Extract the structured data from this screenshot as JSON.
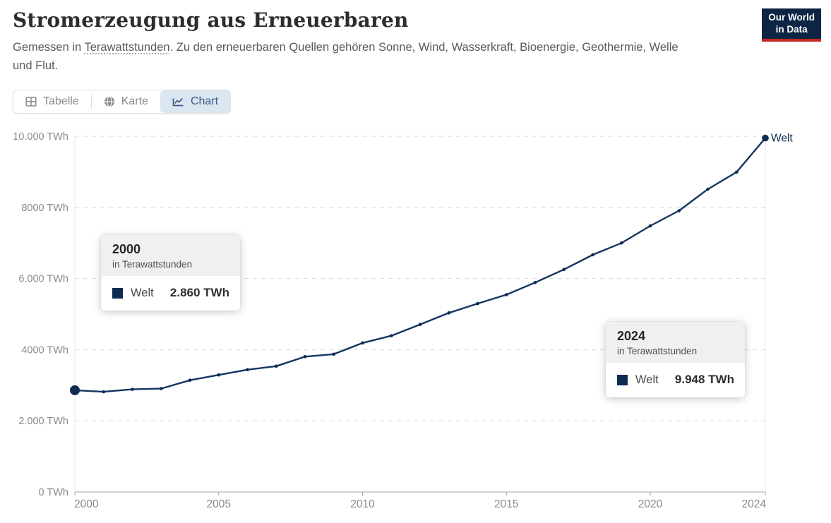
{
  "header": {
    "title": "Stromerzeugung aus Erneuerbaren",
    "subtitle_prefix": "Gemessen in ",
    "subtitle_link": "Terawattstunden",
    "subtitle_suffix": ". Zu den erneuerbaren Quellen gehören Sonne, Wind, Wasserkraft, Bioenergie, Geothermie, Welle",
    "subtitle_line2": "und Flut.",
    "logo": {
      "line1": "Our World",
      "line2": "in Data",
      "bg_color": "#0c2545",
      "accent_color": "#c72621"
    }
  },
  "tabs": [
    {
      "label": "Tabelle",
      "icon": "table-icon",
      "active": false
    },
    {
      "label": "Karte",
      "icon": "globe-icon",
      "active": false
    },
    {
      "label": "Chart",
      "icon": "line-chart-icon",
      "active": true
    }
  ],
  "chart_data": {
    "type": "line",
    "title": "Stromerzeugung aus Erneuerbaren",
    "unit": "TWh",
    "xlim": [
      2000,
      2024
    ],
    "ylim": [
      0,
      10000
    ],
    "grid": "horizontal-dashed",
    "legend_position": "end-of-line-label",
    "x": [
      2000,
      2001,
      2002,
      2003,
      2004,
      2005,
      2006,
      2007,
      2008,
      2009,
      2010,
      2011,
      2012,
      2013,
      2014,
      2015,
      2016,
      2017,
      2018,
      2019,
      2020,
      2021,
      2022,
      2023,
      2024
    ],
    "series": [
      {
        "name": "Welt",
        "color": "#153560",
        "values": [
          2860,
          2815,
          2884,
          2905,
          3140,
          3290,
          3437,
          3535,
          3803,
          3873,
          4188,
          4391,
          4709,
          5033,
          5296,
          5545,
          5886,
          6254,
          6666,
          6998,
          7480,
          7907,
          8510,
          8992,
          9948
        ]
      }
    ],
    "x_ticks": [
      {
        "value": 2000,
        "label": "2000"
      },
      {
        "value": 2005,
        "label": "2005"
      },
      {
        "value": 2010,
        "label": "2010"
      },
      {
        "value": 2015,
        "label": "2015"
      },
      {
        "value": 2020,
        "label": "2020"
      },
      {
        "value": 2024,
        "label": "2024"
      }
    ],
    "y_ticks": [
      {
        "value": 0,
        "label": "0 TWh"
      },
      {
        "value": 2000,
        "label": "2.000 TWh"
      },
      {
        "value": 4000,
        "label": "4000 TWh"
      },
      {
        "value": 6000,
        "label": "6.000 TWh"
      },
      {
        "value": 8000,
        "label": "8000 TWh"
      },
      {
        "value": 10000,
        "label": "10.000 TWh"
      }
    ]
  },
  "tooltips": [
    {
      "year": "2000",
      "unit_line": "in Terawattstunden",
      "entity": "Welt",
      "value": "2.860 TWh"
    },
    {
      "year": "2024",
      "unit_line": "in Terawattstunden",
      "entity": "Welt",
      "value": "9.948 TWh"
    }
  ]
}
